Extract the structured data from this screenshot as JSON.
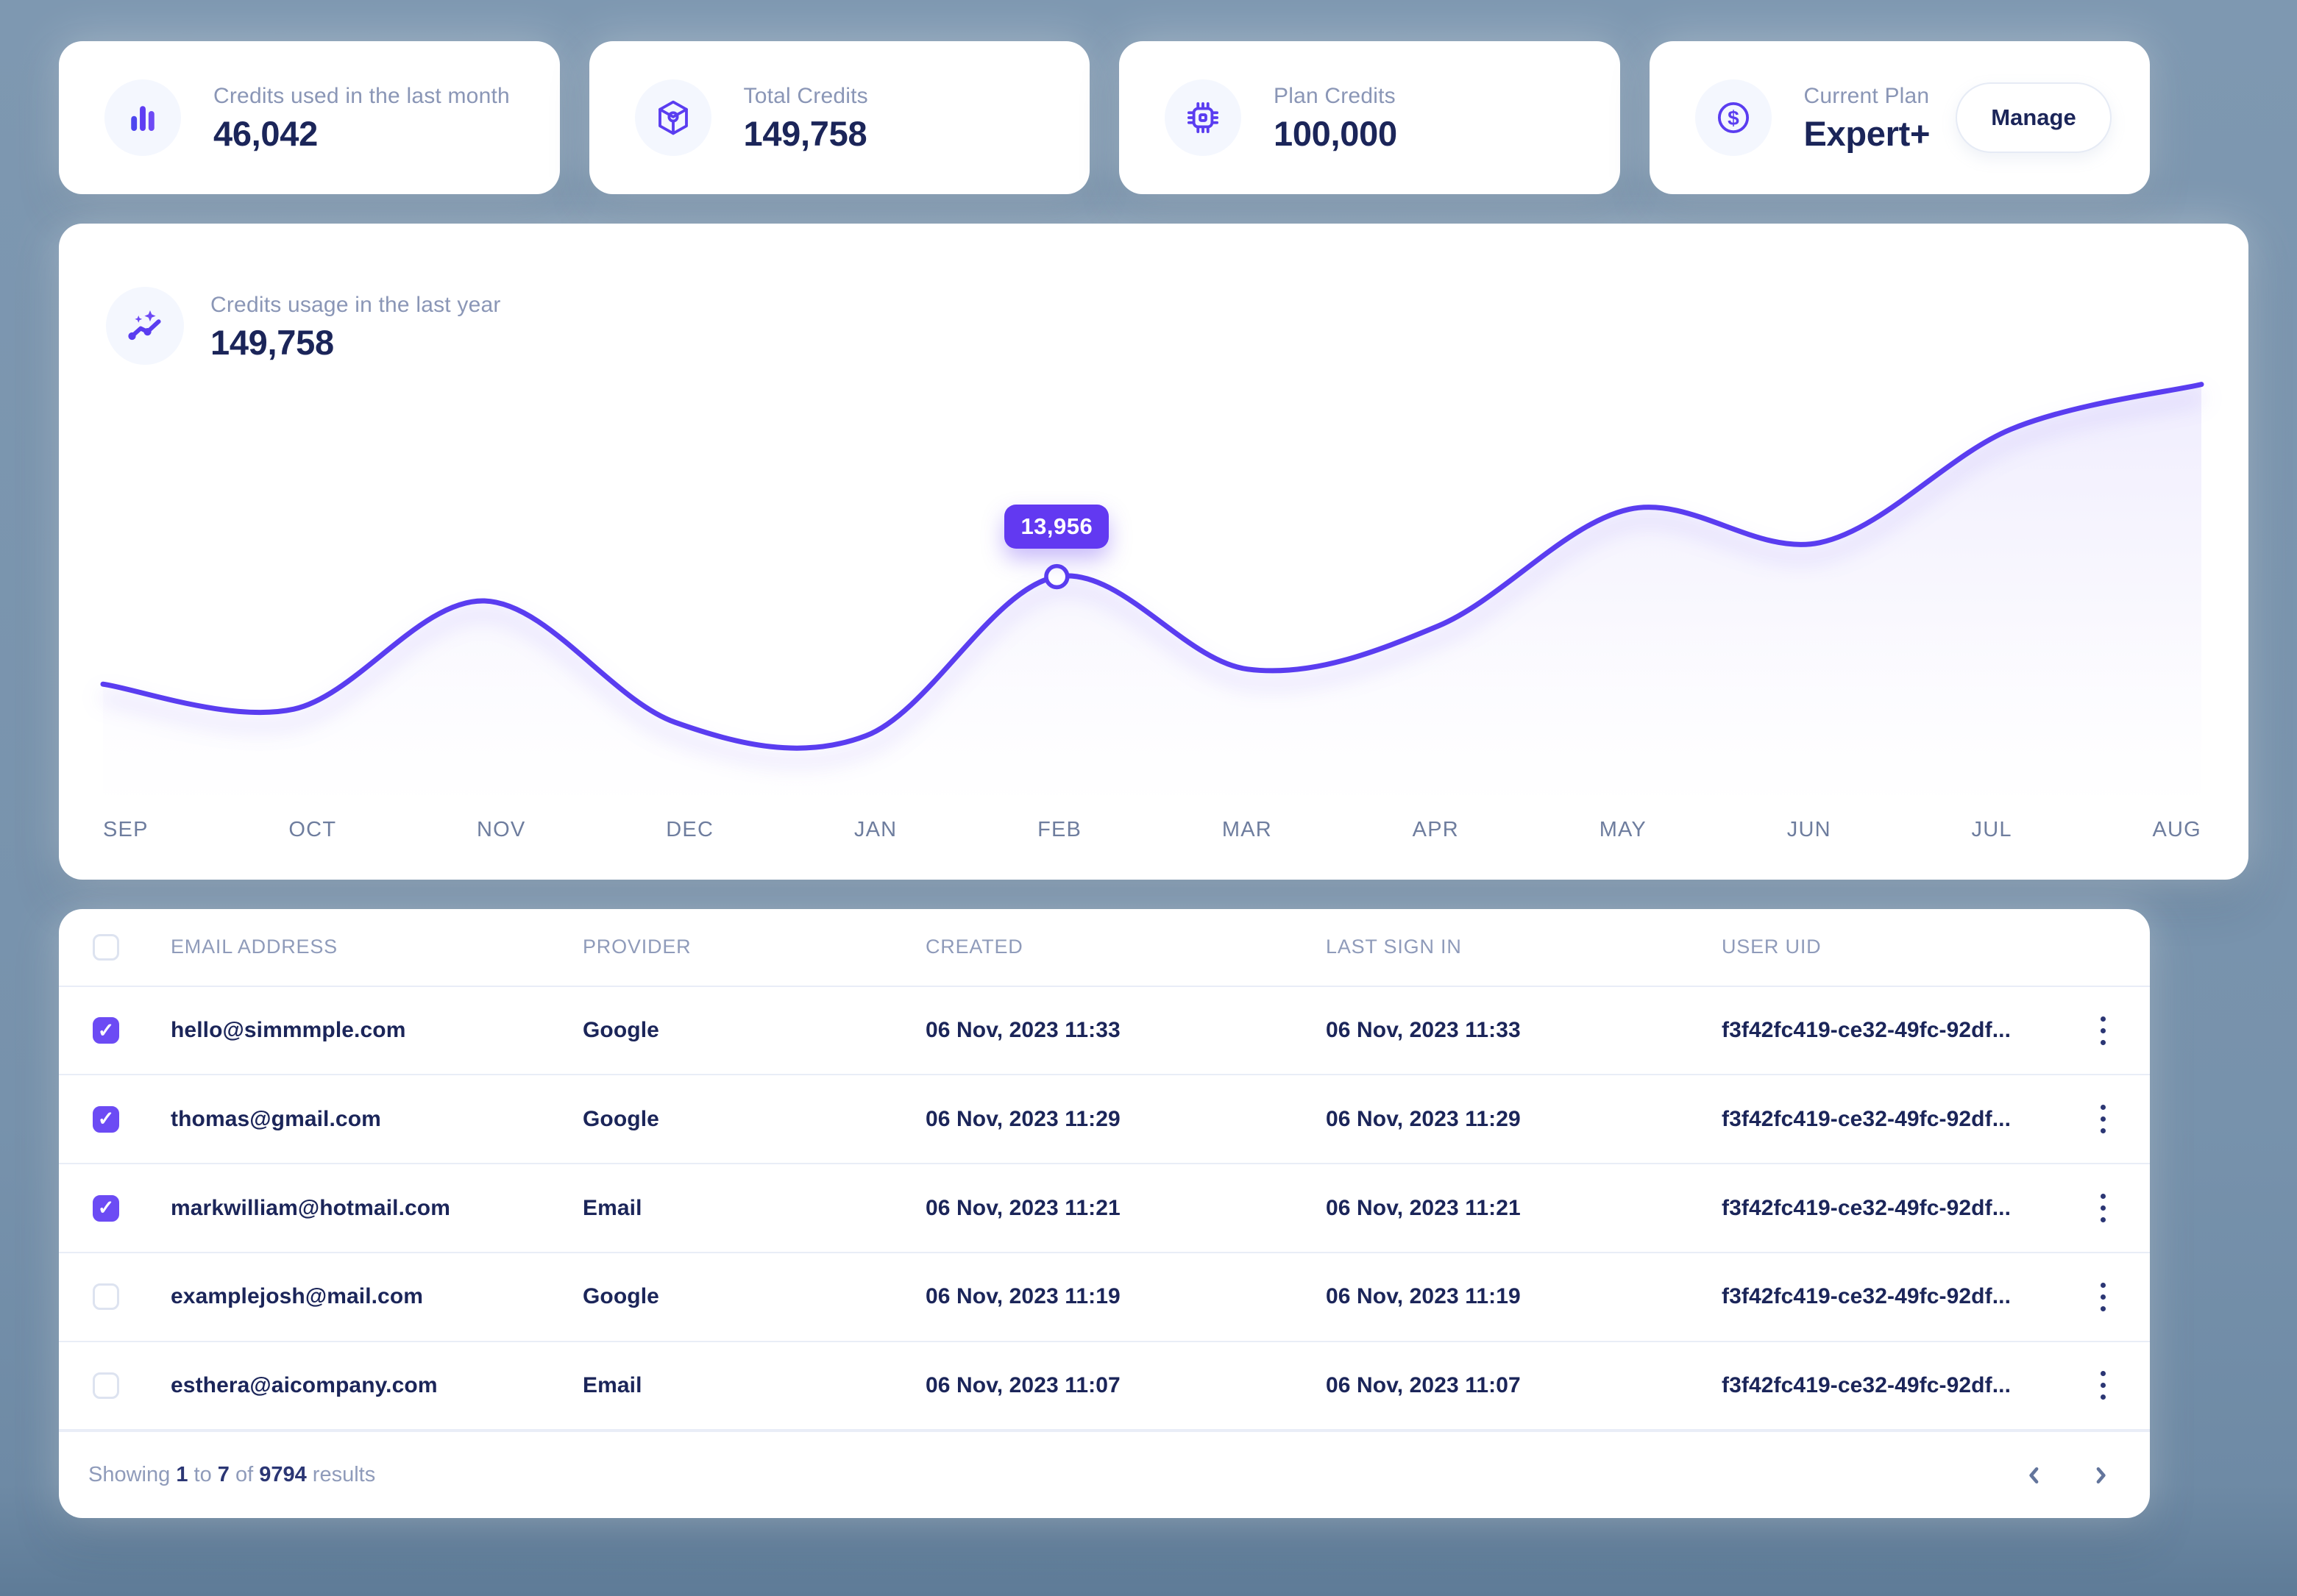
{
  "colors": {
    "accent": "#5A3DF0",
    "tooltip_bg": "#6239F1",
    "checkbox_checked": "#6C4BF4",
    "navy_text": "#1B2559",
    "gray_label": "#8A96B6",
    "background": "#7792AC"
  },
  "stats": [
    {
      "icon": "bar-chart-icon",
      "label": "Credits used in the last month",
      "value": "46,042"
    },
    {
      "icon": "cube-icon",
      "label": "Total Credits",
      "value": "149,758"
    },
    {
      "icon": "chip-icon",
      "label": "Plan Credits",
      "value": "100,000"
    },
    {
      "icon": "dollar-coin-icon",
      "label": "Current Plan",
      "value": "Expert+",
      "button_label": "Manage"
    }
  ],
  "chart": {
    "icon": "trend-sparkle-icon",
    "title": "Credits usage in the last year",
    "total": "149,758"
  },
  "chart_data": {
    "type": "line",
    "title": "Credits usage in the last year",
    "x": [
      "SEP",
      "OCT",
      "NOV",
      "DEC",
      "JAN",
      "FEB",
      "MAR",
      "APR",
      "MAY",
      "JUN",
      "JUL",
      "AUG"
    ],
    "values": [
      7500,
      6000,
      12500,
      5200,
      4400,
      13956,
      8400,
      11000,
      18000,
      16000,
      22800,
      25500
    ],
    "values_note": "Only FEB value (13,956) is labeled on screen; other points estimated from curve height",
    "ylim": [
      0,
      26500
    ],
    "grid": false,
    "legend": false,
    "line_color": "#5A3DF0",
    "tooltip": {
      "index": 5,
      "label": "13,956"
    }
  },
  "table": {
    "columns": [
      "EMAIL ADDRESS",
      "PROVIDER",
      "CREATED",
      "LAST SIGN IN",
      "USER UID"
    ],
    "rows": [
      {
        "checked": true,
        "email": "hello@simmmple.com",
        "provider": "Google",
        "created": "06 Nov, 2023 11:33",
        "last_sign_in": "06 Nov, 2023 11:33",
        "user_uid": "f3f42fc419-ce32-49fc-92df..."
      },
      {
        "checked": true,
        "email": "thomas@gmail.com",
        "provider": "Google",
        "created": "06 Nov, 2023 11:29",
        "last_sign_in": "06 Nov, 2023 11:29",
        "user_uid": "f3f42fc419-ce32-49fc-92df..."
      },
      {
        "checked": true,
        "email": "markwilliam@hotmail.com",
        "provider": "Email",
        "created": "06 Nov, 2023 11:21",
        "last_sign_in": "06 Nov, 2023 11:21",
        "user_uid": "f3f42fc419-ce32-49fc-92df..."
      },
      {
        "checked": false,
        "email": "examplejosh@mail.com",
        "provider": "Google",
        "created": "06 Nov, 2023 11:19",
        "last_sign_in": "06 Nov, 2023 11:19",
        "user_uid": "f3f42fc419-ce32-49fc-92df..."
      },
      {
        "checked": false,
        "email": "esthera@aicompany.com",
        "provider": "Email",
        "created": "06 Nov, 2023 11:07",
        "last_sign_in": "06 Nov, 2023 11:07",
        "user_uid": "f3f42fc419-ce32-49fc-92df..."
      }
    ],
    "footer": {
      "prefix": "Showing",
      "from": "1",
      "to_label": "to",
      "to": "7",
      "of_label": "of",
      "total": "9794",
      "results_label": "results"
    }
  }
}
